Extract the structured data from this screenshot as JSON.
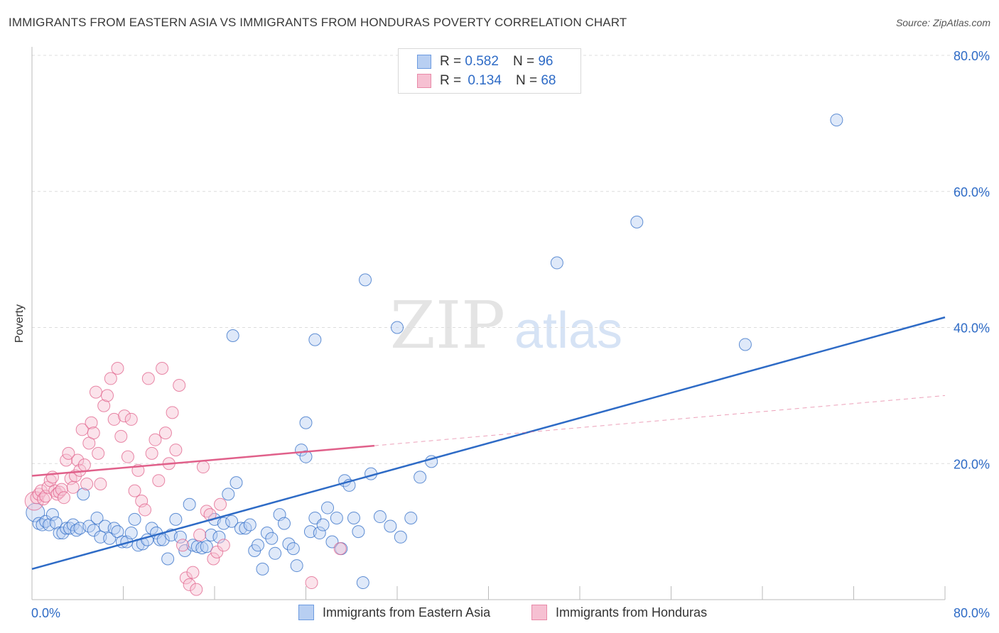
{
  "title": "IMMIGRANTS FROM EASTERN ASIA VS IMMIGRANTS FROM HONDURAS POVERTY CORRELATION CHART",
  "source": "Source: ZipAtlas.com",
  "watermark": {
    "zip": "ZIP",
    "atlas": "atlas"
  },
  "legend": {
    "rows": [
      {
        "r_label": "R =",
        "r_value": "0.582",
        "n_label": "N =",
        "n_value": "96"
      },
      {
        "r_label": "R =",
        "r_value": "0.134",
        "n_label": "N =",
        "n_value": "68"
      }
    ]
  },
  "bottom_legend": [
    "Immigrants from Eastern Asia",
    "Immigrants from Honduras"
  ],
  "colors": {
    "blue": "#2e6bc6",
    "blue_fill": "#b8cff2",
    "pink": "#e0608a",
    "pink_fill": "#f6c0d2"
  },
  "chart_data": {
    "type": "scatter",
    "ylabel": "Poverty",
    "xlim": [
      0,
      80
    ],
    "ylim": [
      0,
      80
    ],
    "x_tick_labels": [
      "0.0%",
      "80.0%"
    ],
    "y_tick_labels": [
      "20.0%",
      "40.0%",
      "60.0%",
      "80.0%"
    ],
    "y_ticks": [
      20,
      40,
      60,
      80
    ],
    "series": [
      {
        "name": "Immigrants from Eastern Asia",
        "color": "#2e6bc6",
        "trend": {
          "x": [
            0,
            80
          ],
          "y": [
            4.5,
            41.5
          ],
          "dashed_from": null
        },
        "points": [
          [
            0.3,
            12.8
          ],
          [
            0.6,
            11.2
          ],
          [
            0.9,
            11.0
          ],
          [
            1.2,
            11.5
          ],
          [
            1.5,
            11.0
          ],
          [
            1.8,
            12.5
          ],
          [
            2.1,
            11.3
          ],
          [
            2.4,
            9.8
          ],
          [
            2.7,
            9.8
          ],
          [
            3.0,
            10.5
          ],
          [
            3.3,
            10.5
          ],
          [
            3.6,
            11.0
          ],
          [
            3.9,
            10.2
          ],
          [
            4.2,
            10.5
          ],
          [
            4.5,
            15.5
          ],
          [
            5.0,
            10.8
          ],
          [
            5.4,
            10.2
          ],
          [
            5.7,
            12.0
          ],
          [
            6.0,
            9.2
          ],
          [
            6.4,
            10.8
          ],
          [
            6.8,
            9.0
          ],
          [
            7.2,
            10.5
          ],
          [
            7.5,
            10.0
          ],
          [
            7.9,
            8.5
          ],
          [
            8.3,
            8.5
          ],
          [
            8.7,
            9.8
          ],
          [
            9.0,
            11.8
          ],
          [
            9.3,
            8.0
          ],
          [
            9.7,
            8.2
          ],
          [
            10.1,
            8.8
          ],
          [
            10.5,
            10.5
          ],
          [
            10.9,
            9.8
          ],
          [
            11.2,
            8.8
          ],
          [
            11.5,
            8.8
          ],
          [
            11.9,
            6.0
          ],
          [
            12.2,
            9.5
          ],
          [
            12.6,
            11.8
          ],
          [
            13.0,
            9.2
          ],
          [
            13.4,
            7.2
          ],
          [
            13.8,
            14.0
          ],
          [
            14.1,
            8.0
          ],
          [
            14.5,
            7.8
          ],
          [
            14.9,
            7.6
          ],
          [
            15.3,
            7.8
          ],
          [
            15.7,
            9.5
          ],
          [
            16.0,
            11.8
          ],
          [
            16.4,
            9.2
          ],
          [
            16.8,
            11.2
          ],
          [
            17.2,
            15.5
          ],
          [
            17.5,
            11.5
          ],
          [
            17.9,
            17.2
          ],
          [
            18.3,
            10.5
          ],
          [
            18.7,
            10.5
          ],
          [
            19.1,
            11.0
          ],
          [
            19.5,
            7.2
          ],
          [
            19.8,
            8.0
          ],
          [
            20.2,
            4.5
          ],
          [
            20.6,
            9.8
          ],
          [
            21.0,
            9.0
          ],
          [
            21.3,
            6.8
          ],
          [
            21.7,
            12.5
          ],
          [
            22.1,
            11.2
          ],
          [
            22.5,
            8.2
          ],
          [
            22.9,
            7.5
          ],
          [
            23.2,
            5.0
          ],
          [
            23.6,
            22.0
          ],
          [
            24.0,
            21.0
          ],
          [
            24.4,
            10.0
          ],
          [
            24.8,
            12.0
          ],
          [
            25.2,
            9.8
          ],
          [
            25.5,
            11.0
          ],
          [
            25.9,
            13.5
          ],
          [
            26.3,
            8.5
          ],
          [
            26.7,
            12.0
          ],
          [
            27.1,
            7.5
          ],
          [
            27.4,
            17.5
          ],
          [
            27.8,
            16.8
          ],
          [
            28.2,
            12.0
          ],
          [
            28.6,
            10.0
          ],
          [
            29.0,
            2.5
          ],
          [
            29.7,
            18.5
          ],
          [
            30.5,
            12.2
          ],
          [
            31.4,
            10.8
          ],
          [
            32.3,
            9.2
          ],
          [
            33.2,
            12.0
          ],
          [
            17.6,
            38.8
          ],
          [
            24.8,
            38.2
          ],
          [
            29.2,
            47.0
          ],
          [
            32.0,
            40.0
          ],
          [
            34.0,
            18.0
          ],
          [
            35.0,
            20.3
          ],
          [
            46.0,
            49.5
          ],
          [
            53.0,
            55.5
          ],
          [
            62.5,
            37.5
          ],
          [
            70.5,
            70.5
          ],
          [
            24.0,
            26.0
          ]
        ]
      },
      {
        "name": "Immigrants from Honduras",
        "color": "#e0608a",
        "trend": {
          "x": [
            0,
            80
          ],
          "y": [
            18.2,
            30.0
          ],
          "dashed_from": 30
        },
        "points": [
          [
            0.2,
            14.5
          ],
          [
            0.4,
            15.0
          ],
          [
            0.6,
            15.5
          ],
          [
            0.8,
            16.0
          ],
          [
            1.0,
            14.8
          ],
          [
            1.2,
            15.2
          ],
          [
            1.4,
            16.5
          ],
          [
            1.6,
            17.5
          ],
          [
            1.8,
            18.0
          ],
          [
            2.0,
            16.0
          ],
          [
            2.2,
            15.5
          ],
          [
            2.4,
            15.8
          ],
          [
            2.6,
            16.2
          ],
          [
            2.8,
            15.0
          ],
          [
            3.0,
            20.5
          ],
          [
            3.2,
            21.5
          ],
          [
            3.4,
            17.8
          ],
          [
            3.6,
            16.5
          ],
          [
            3.8,
            18.2
          ],
          [
            4.0,
            20.5
          ],
          [
            4.2,
            19.0
          ],
          [
            4.4,
            25.0
          ],
          [
            4.6,
            19.8
          ],
          [
            4.8,
            17.0
          ],
          [
            5.0,
            23.0
          ],
          [
            5.2,
            26.0
          ],
          [
            5.4,
            24.5
          ],
          [
            5.6,
            30.5
          ],
          [
            5.8,
            21.5
          ],
          [
            6.0,
            17.0
          ],
          [
            6.3,
            28.5
          ],
          [
            6.6,
            30.0
          ],
          [
            6.9,
            32.5
          ],
          [
            7.2,
            26.5
          ],
          [
            7.5,
            34.0
          ],
          [
            7.8,
            24.0
          ],
          [
            8.1,
            27.0
          ],
          [
            8.4,
            21.0
          ],
          [
            8.7,
            26.5
          ],
          [
            9.0,
            16.0
          ],
          [
            9.3,
            19.0
          ],
          [
            9.6,
            14.5
          ],
          [
            9.9,
            13.2
          ],
          [
            10.2,
            32.5
          ],
          [
            10.5,
            21.5
          ],
          [
            10.8,
            23.5
          ],
          [
            11.1,
            17.5
          ],
          [
            11.4,
            34.0
          ],
          [
            11.7,
            24.5
          ],
          [
            12.0,
            20.0
          ],
          [
            12.3,
            27.5
          ],
          [
            12.6,
            22.0
          ],
          [
            12.9,
            31.5
          ],
          [
            13.2,
            8.0
          ],
          [
            13.5,
            3.2
          ],
          [
            13.8,
            2.2
          ],
          [
            14.1,
            4.0
          ],
          [
            14.4,
            1.5
          ],
          [
            14.7,
            9.5
          ],
          [
            15.0,
            19.5
          ],
          [
            15.3,
            13.0
          ],
          [
            15.6,
            12.5
          ],
          [
            15.9,
            6.0
          ],
          [
            16.2,
            7.0
          ],
          [
            16.5,
            14.0
          ],
          [
            16.8,
            8.0
          ],
          [
            24.5,
            2.5
          ],
          [
            27.0,
            7.5
          ]
        ]
      }
    ]
  }
}
